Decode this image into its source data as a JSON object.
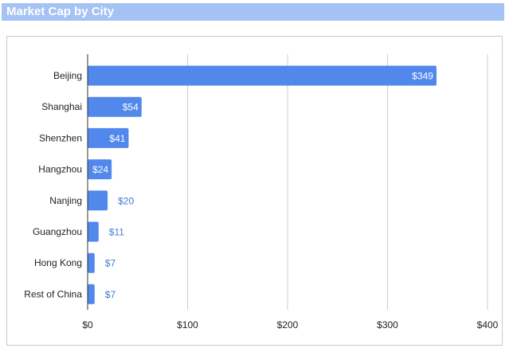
{
  "title": "Market Cap by City",
  "colors": {
    "bar": "#5287ec",
    "title_bg": "#a4c2f4",
    "label_inside": "#ffffff",
    "label_outside": "#3c78d8",
    "grid": "#cccccc"
  },
  "chart_data": {
    "type": "bar",
    "orientation": "horizontal",
    "title": "Market Cap by City",
    "xlabel": "",
    "ylabel": "",
    "categories": [
      "Beijing",
      "Shanghai",
      "Shenzhen",
      "Hangzhou",
      "Nanjing",
      "Guangzhou",
      "Hong Kong",
      "Rest of China"
    ],
    "values": [
      349,
      54,
      41,
      24,
      20,
      11,
      7,
      7
    ],
    "data_labels": [
      "$349",
      "$54",
      "$41",
      "$24",
      "$20",
      "$11",
      "$7",
      "$7"
    ],
    "xlim": [
      0,
      400
    ],
    "x_ticks": [
      0,
      100,
      200,
      300,
      400
    ],
    "x_tick_labels": [
      "$0",
      "$100",
      "$200",
      "$300",
      "$400"
    ],
    "grid": true,
    "legend": "none"
  }
}
